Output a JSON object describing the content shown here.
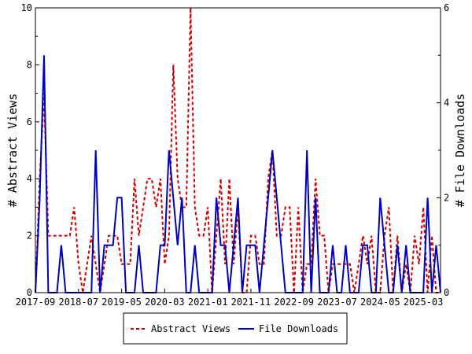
{
  "chart_data": {
    "type": "line",
    "title": "",
    "xlabel": "",
    "ylabel": "# Abstract Views",
    "y2label": "# File Downloads",
    "x_tick_labels": [
      "2017-09",
      "2018-07",
      "2019-05",
      "2020-03",
      "2021-01",
      "2021-11",
      "2022-09",
      "2023-07",
      "2024-05",
      "2025-03"
    ],
    "x_tick_months": [
      0,
      10,
      20,
      30,
      40,
      50,
      60,
      70,
      80,
      90
    ],
    "x_range": [
      0,
      94
    ],
    "ylim": [
      0,
      10
    ],
    "y_ticks": [
      "0",
      "2",
      "4",
      "6",
      "8",
      "10"
    ],
    "y2lim": [
      0,
      6
    ],
    "y2_ticks": [
      "0",
      "2",
      "4",
      "6"
    ],
    "grid": false,
    "legend_position": "bottom-center",
    "series": [
      {
        "name": "Abstract Views",
        "axis": "left",
        "color": "#cc0000",
        "style": "dashed",
        "values": [
          0,
          4,
          7,
          2,
          2,
          2,
          2,
          2,
          2,
          3,
          1,
          0,
          1,
          2,
          1,
          0,
          1,
          2,
          2,
          2,
          1,
          1,
          1,
          4,
          2,
          3,
          4,
          4,
          3,
          4,
          1,
          2,
          8,
          4,
          3,
          3,
          10,
          3,
          2,
          2,
          3,
          0,
          2,
          4,
          1,
          4,
          1,
          3,
          0,
          0,
          2,
          2,
          1,
          1,
          4,
          5,
          2,
          2,
          3,
          3,
          0,
          3,
          0,
          1,
          1,
          4,
          2,
          2,
          0,
          1,
          1,
          1,
          1,
          1,
          0,
          1,
          2,
          1,
          2,
          0,
          0,
          2,
          3,
          0,
          2,
          0,
          1,
          0,
          2,
          1,
          3,
          0,
          2,
          0,
          0
        ]
      },
      {
        "name": "File Downloads",
        "axis": "right",
        "color": "#0000bb",
        "style": "solid",
        "values": [
          0,
          2,
          5,
          0,
          0,
          0,
          1,
          0,
          0,
          0,
          0,
          0,
          0,
          0,
          3,
          0,
          1,
          1,
          1,
          2,
          2,
          0,
          0,
          0,
          1,
          0,
          0,
          0,
          0,
          1,
          1,
          3,
          2,
          1,
          2,
          0,
          0,
          1,
          0,
          0,
          0,
          0,
          2,
          1,
          1,
          0,
          1,
          2,
          0,
          1,
          1,
          1,
          0,
          1,
          2,
          3,
          2,
          1,
          0,
          0,
          0,
          0,
          0,
          3,
          0,
          2,
          0,
          0,
          0,
          1,
          0,
          0,
          1,
          0,
          0,
          0,
          1,
          1,
          0,
          0,
          2,
          1,
          0,
          0,
          1,
          0,
          1,
          0,
          0,
          0,
          0,
          2,
          0,
          1,
          0
        ]
      }
    ]
  }
}
